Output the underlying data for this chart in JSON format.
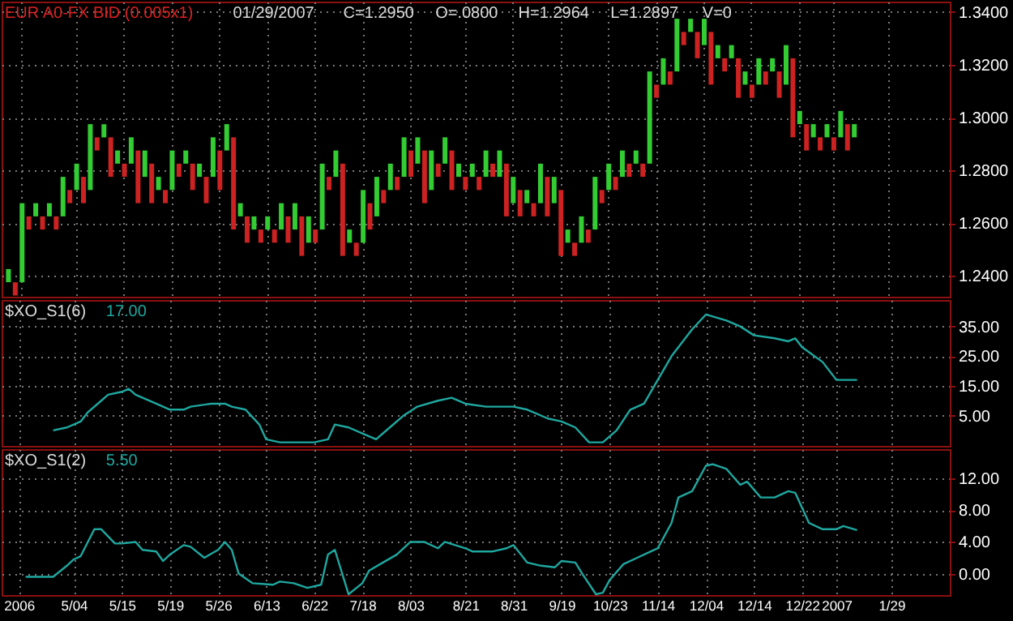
{
  "chart_data": [
    {
      "type": "bar",
      "title": "EUR A0-FX BID (0.005x1)",
      "annotations": [
        "01/29/2007",
        "C=1.2950",
        "O=.0800",
        "H=1.2964",
        "L=1.2897",
        "V=0"
      ],
      "categories": [
        null,
        null,
        null,
        null,
        null,
        null,
        null,
        null,
        null,
        null,
        null,
        null,
        null,
        null,
        null,
        null,
        null,
        null,
        null,
        null,
        null,
        null,
        null,
        null,
        null,
        null,
        null,
        null,
        null,
        null,
        null,
        null,
        null,
        null,
        null,
        null,
        null,
        null,
        null,
        null,
        null,
        null,
        null,
        null,
        null,
        null,
        null,
        null,
        null,
        null,
        null,
        null,
        null,
        null,
        null,
        null,
        null,
        null,
        null,
        null,
        null,
        null,
        null,
        null,
        null,
        null,
        null,
        null,
        null,
        null,
        null,
        null,
        null,
        null,
        null,
        null,
        null,
        null,
        null,
        null,
        null,
        null,
        null,
        null,
        null,
        null,
        null,
        null,
        null,
        null,
        null,
        null,
        null,
        null,
        null,
        null,
        null,
        null,
        null,
        null,
        null,
        null,
        null,
        null,
        null,
        null,
        null,
        null,
        null,
        null,
        null,
        null,
        null,
        null,
        null,
        null,
        null,
        null,
        null,
        null,
        null,
        null,
        null,
        null,
        null,
        null,
        null,
        null,
        null,
        null,
        null,
        null,
        null,
        null,
        null,
        null,
        null,
        null
      ],
      "values": [
        0.005,
        0.005,
        0.03,
        0.005,
        0.005,
        0.005,
        0.005,
        0.005,
        0.015,
        0.005,
        0.01,
        0.01,
        0.025,
        0.005,
        0.005,
        0.015,
        0.005,
        0.005,
        0.01,
        0.02,
        0.01,
        0.015,
        0.005,
        0.005,
        0.015,
        0.005,
        0.005,
        0.01,
        0.005,
        0.01,
        0.015,
        0.015,
        0.01,
        0.035,
        0.005,
        0.01,
        0.005,
        0.005,
        0.005,
        0.005,
        0.01,
        0.01,
        0.01,
        0.015,
        0.01,
        0.005,
        0.025,
        0.005,
        0.01,
        0.035,
        0.005,
        0.005,
        0.02,
        0.01,
        0.015,
        0.005,
        0.01,
        0.005,
        0.015,
        0.01,
        0.01,
        0.02,
        0.015,
        0.005,
        0.01,
        0.015,
        0.005,
        0.005,
        0.005,
        0.005,
        0.01,
        0.005,
        0.01,
        0.02,
        0.01,
        0.01,
        0.005,
        0.005,
        0.015,
        0.015,
        0.01,
        0.025,
        0.005,
        0.005,
        0.01,
        0.005,
        0.02,
        0.005,
        0.01,
        0.005,
        0.01,
        0.005,
        0.005,
        0.005,
        0.035,
        0.005,
        0.01,
        0.005,
        0.02,
        0.005,
        0.005,
        0.01,
        0.01,
        0.02,
        0.005,
        0.005,
        0.005,
        0.015,
        0.005,
        0.005,
        0.01,
        0.005,
        0.005,
        0.01,
        0.015,
        0.03,
        0.005,
        0.01,
        0.005,
        0.005,
        0.005,
        0.005,
        0.01,
        0.01,
        0.005,
        null,
        null,
        null,
        null,
        null,
        null,
        null,
        null,
        null,
        null,
        null,
        null,
        null
      ],
      "base": [
        1.2375,
        1.2325,
        1.2375,
        1.2575,
        1.2625,
        1.2575,
        1.2625,
        1.2575,
        1.2625,
        1.2675,
        1.2725,
        1.2675,
        1.2725,
        1.2875,
        1.2925,
        1.2775,
        1.2825,
        1.2775,
        1.2825,
        1.2675,
        1.2775,
        1.2675,
        1.2725,
        1.2675,
        1.2725,
        1.2775,
        1.2825,
        1.2725,
        1.2775,
        1.2675,
        1.2775,
        1.2725,
        1.2875,
        1.2575,
        1.2625,
        1.2525,
        1.2575,
        1.2525,
        1.2575,
        1.2525,
        1.2575,
        1.2525,
        1.2575,
        1.2475,
        1.2525,
        1.2525,
        1.2575,
        1.2725,
        1.2775,
        1.2475,
        1.2525,
        1.2475,
        1.2525,
        1.2575,
        1.2625,
        1.2675,
        1.2725,
        1.2725,
        1.2775,
        1.2775,
        1.2825,
        1.2675,
        1.2725,
        1.2775,
        1.2825,
        1.2725,
        1.2775,
        1.2725,
        1.2775,
        1.2725,
        1.2775,
        1.2775,
        1.2775,
        1.2625,
        1.2675,
        1.2625,
        1.2675,
        1.2625,
        1.2675,
        1.2625,
        1.2675,
        1.2475,
        1.2525,
        1.2475,
        1.2525,
        1.2525,
        1.2575,
        1.2675,
        1.2725,
        1.2725,
        1.2775,
        1.2775,
        1.2825,
        1.2775,
        1.2825,
        1.3075,
        1.3125,
        1.3125,
        1.3175,
        1.3275,
        1.3325,
        1.3225,
        1.3275,
        1.3125,
        1.3225,
        1.3175,
        1.3225,
        1.3075,
        1.3125,
        1.3075,
        1.3125,
        1.3125,
        1.3175,
        1.3075,
        1.3125,
        1.2925,
        1.2975,
        1.2875,
        1.2925,
        1.2875,
        1.2925,
        1.2875,
        1.2925,
        1.2875,
        1.2925,
        null,
        null,
        null,
        null,
        null,
        null,
        null,
        null,
        null,
        null,
        null,
        null,
        null
      ],
      "colors": [
        "#33cc33",
        "#cc2222",
        "#33cc33",
        "#cc2222",
        "#33cc33",
        "#cc2222",
        "#33cc33",
        "#cc2222",
        "#33cc33",
        "#cc2222",
        "#33cc33",
        "#cc2222",
        "#33cc33",
        "#cc2222",
        "#33cc33",
        "#cc2222",
        "#33cc33",
        "#cc2222",
        "#33cc33",
        "#cc2222",
        "#33cc33",
        "#cc2222",
        "#33cc33",
        "#cc2222",
        "#33cc33",
        "#cc2222",
        "#33cc33",
        "#cc2222",
        "#33cc33",
        "#cc2222",
        "#33cc33",
        "#cc2222",
        "#33cc33",
        "#cc2222",
        "#33cc33",
        "#cc2222",
        "#33cc33",
        "#cc2222",
        "#33cc33",
        "#cc2222",
        "#33cc33",
        "#cc2222",
        "#33cc33",
        "#cc2222",
        "#33cc33",
        "#cc2222",
        "#33cc33",
        "#cc2222",
        "#33cc33",
        "#cc2222",
        "#33cc33",
        "#cc2222",
        "#33cc33",
        "#cc2222",
        "#33cc33",
        "#cc2222",
        "#33cc33",
        "#cc2222",
        "#33cc33",
        "#cc2222",
        "#33cc33",
        "#cc2222",
        "#33cc33",
        "#cc2222",
        "#33cc33",
        "#cc2222",
        "#33cc33",
        "#cc2222",
        "#33cc33",
        "#cc2222",
        "#33cc33",
        "#cc2222",
        "#33cc33",
        "#cc2222",
        "#33cc33",
        "#cc2222",
        "#33cc33",
        "#cc2222",
        "#33cc33",
        "#cc2222",
        "#33cc33",
        "#cc2222",
        "#33cc33",
        "#cc2222",
        "#33cc33",
        "#cc2222",
        "#33cc33",
        "#cc2222",
        "#33cc33",
        "#cc2222",
        "#33cc33",
        "#cc2222",
        "#33cc33",
        "#cc2222",
        "#33cc33",
        "#cc2222",
        "#33cc33",
        "#cc2222",
        "#33cc33",
        "#cc2222",
        "#33cc33",
        "#cc2222",
        "#33cc33",
        "#cc2222",
        "#33cc33",
        "#cc2222",
        "#33cc33",
        "#cc2222",
        "#33cc33",
        "#cc2222",
        "#33cc33",
        "#cc2222",
        "#33cc33",
        "#cc2222",
        "#33cc33",
        "#cc2222",
        "#33cc33",
        "#cc2222",
        "#33cc33",
        "#cc2222",
        "#33cc33",
        "#cc2222",
        "#33cc33",
        "#cc2222",
        "#33cc33",
        null,
        null,
        null,
        null,
        null,
        null,
        null,
        null,
        null,
        null,
        null,
        null,
        null
      ],
      "ylim": [
        1.232,
        1.344
      ],
      "yticks": [
        {
          "value": 1.24,
          "label": "1.2400"
        },
        {
          "value": 1.26,
          "label": "1.2600"
        },
        {
          "value": 1.28,
          "label": "1.2800"
        },
        {
          "value": 1.3,
          "label": "1.3000"
        },
        {
          "value": 1.32,
          "label": "1.3200"
        },
        {
          "value": 1.34,
          "label": "1.3400"
        }
      ],
      "grid": true,
      "tick_labels": "y"
    },
    {
      "type": "line",
      "title": "$XO_S1(6)",
      "annotations": [
        "17.00"
      ],
      "color": "#1fa8a0",
      "categories": [
        null,
        null,
        null,
        null,
        null,
        null,
        null,
        null,
        null,
        null,
        null,
        null,
        null,
        null,
        null,
        null,
        null,
        null,
        null,
        null,
        null,
        null,
        null,
        null,
        null,
        null,
        null,
        null,
        null,
        null,
        null,
        null,
        null,
        null,
        null,
        null,
        null,
        null,
        null,
        null,
        null,
        null,
        null,
        null,
        null,
        null,
        null,
        null,
        null,
        null,
        null,
        null,
        null,
        null,
        null,
        null,
        null,
        null,
        null,
        null,
        null,
        null,
        null,
        null,
        null,
        null,
        null,
        null,
        null,
        null,
        null,
        null,
        null,
        null,
        null,
        null,
        null,
        null,
        null,
        null,
        null,
        null,
        null,
        null,
        null,
        null,
        null,
        null,
        null,
        null,
        null,
        null,
        null,
        null,
        null,
        null,
        null,
        null,
        null,
        null,
        null,
        null,
        null,
        null,
        null,
        null,
        null,
        null,
        null,
        null,
        null,
        null,
        null,
        null,
        null,
        null,
        null,
        null,
        null,
        null,
        null,
        null,
        null,
        null,
        null,
        null,
        null,
        null,
        null,
        null,
        null,
        null,
        null,
        null,
        null,
        null,
        null,
        null
      ],
      "values": [
        null,
        null,
        null,
        null,
        null,
        null,
        null,
        0,
        null,
        1,
        2,
        3,
        6,
        null,
        10,
        12,
        null,
        13,
        14,
        12,
        null,
        null,
        9,
        null,
        7,
        null,
        7,
        8,
        null,
        null,
        9,
        null,
        9,
        8,
        null,
        7,
        null,
        2,
        -3,
        null,
        -4,
        null,
        -4,
        -4,
        null,
        -4,
        null,
        -3,
        2,
        null,
        1,
        null,
        -1,
        null,
        -3,
        null,
        1,
        null,
        5,
        null,
        8,
        null,
        null,
        10,
        null,
        11,
        null,
        9,
        null,
        null,
        8,
        null,
        8,
        null,
        8,
        null,
        7,
        null,
        null,
        4,
        null,
        3,
        null,
        1,
        null,
        -4,
        null,
        -4,
        null,
        0,
        null,
        7,
        null,
        9,
        null,
        17,
        null,
        25,
        null,
        null,
        34,
        null,
        39,
        null,
        null,
        37,
        null,
        35,
        null,
        32,
        null,
        null,
        31,
        null,
        30,
        31,
        28,
        null,
        null,
        23,
        null,
        17,
        null,
        null,
        17,
        null,
        null,
        null,
        null,
        null,
        null,
        null,
        null,
        null,
        null,
        null,
        null,
        null
      ],
      "ylim": [
        -5.2,
        43.9
      ],
      "yticks": [
        {
          "value": 5,
          "label": "5.00"
        },
        {
          "value": 15,
          "label": "15.00"
        },
        {
          "value": 25,
          "label": "25.00"
        },
        {
          "value": 35,
          "label": "35.00"
        }
      ],
      "grid": true,
      "tick_labels": "y"
    },
    {
      "type": "line",
      "title": "$XO_S1(2)",
      "annotations": [
        "5.50"
      ],
      "color": "#1fa8a0",
      "categories": [
        null,
        null,
        "2006",
        null,
        null,
        null,
        null,
        null,
        null,
        null,
        "5/04",
        null,
        null,
        null,
        null,
        null,
        null,
        "5/15",
        null,
        null,
        null,
        null,
        null,
        null,
        "5/19",
        null,
        null,
        null,
        null,
        null,
        null,
        "5/26",
        null,
        null,
        null,
        null,
        null,
        null,
        "6/13",
        null,
        null,
        null,
        null,
        null,
        null,
        "6/22",
        null,
        null,
        null,
        null,
        null,
        null,
        "7/18",
        null,
        null,
        null,
        null,
        null,
        null,
        "8/03",
        null,
        null,
        null,
        null,
        null,
        null,
        null,
        "8/21",
        null,
        null,
        null,
        null,
        null,
        null,
        "8/31",
        null,
        null,
        null,
        null,
        null,
        null,
        "9/19",
        null,
        null,
        null,
        null,
        null,
        null,
        "10/23",
        null,
        null,
        null,
        null,
        null,
        null,
        "11/14",
        null,
        null,
        null,
        null,
        null,
        null,
        "12/04",
        null,
        null,
        null,
        null,
        null,
        null,
        "12/14",
        null,
        null,
        null,
        null,
        null,
        null,
        "12/22",
        null,
        null,
        null,
        null,
        "2007",
        null,
        null,
        null,
        null,
        null,
        null,
        null,
        "1/29",
        null,
        null,
        null,
        null,
        null,
        null,
        null,
        null
      ],
      "values": [
        null,
        null,
        null,
        -0.4,
        null,
        null,
        null,
        -0.4,
        null,
        1,
        1.8,
        2.2,
        null,
        5.6,
        5.6,
        null,
        3.8,
        3.8,
        null,
        4,
        3,
        null,
        2.8,
        1.6,
        2.4,
        null,
        3.6,
        3.4,
        null,
        2,
        null,
        3,
        4,
        3,
        0,
        null,
        -1.2,
        null,
        null,
        -1.4,
        -1,
        null,
        -1.2,
        null,
        -1.8,
        null,
        -1.4,
        2.4,
        3,
        null,
        -2.6,
        null,
        -1.2,
        0.4,
        null,
        1.4,
        null,
        2.4,
        null,
        4,
        null,
        4,
        null,
        3.2,
        4,
        null,
        null,
        3.2,
        2.8,
        null,
        null,
        2.8,
        null,
        3.2,
        3.6,
        null,
        1.4,
        null,
        1,
        null,
        0.8,
        1.6,
        null,
        1.4,
        0,
        null,
        -2.6,
        -2.4,
        -0.8,
        null,
        1.2,
        null,
        2,
        null,
        2.8,
        3.2,
        null,
        6.4,
        9.6,
        null,
        10.4,
        null,
        13.6,
        13.8,
        null,
        13.2,
        null,
        11.2,
        11.6,
        null,
        9.6,
        null,
        9.6,
        null,
        10.4,
        10.2,
        null,
        6.4,
        null,
        5.6,
        null,
        5.6,
        6,
        null,
        5.5,
        null,
        null,
        null,
        null,
        null,
        null,
        null,
        null,
        null,
        null,
        null,
        null,
        null
      ],
      "ylim": [
        -2.7,
        15.7
      ],
      "yticks": [
        {
          "value": 0,
          "label": "0.00"
        },
        {
          "value": 4,
          "label": "4.00"
        },
        {
          "value": 8,
          "label": "8.00"
        },
        {
          "value": 12,
          "label": "12.00"
        }
      ],
      "grid": true
    }
  ]
}
